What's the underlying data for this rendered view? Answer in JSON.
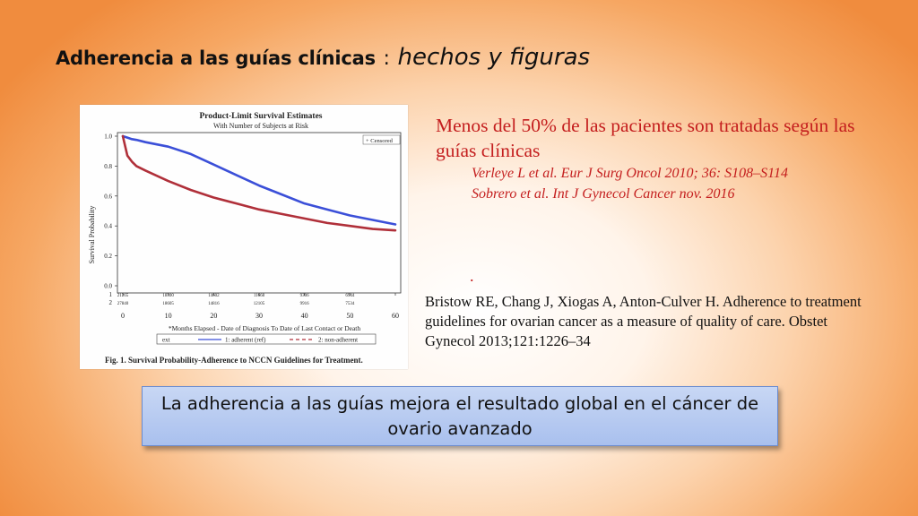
{
  "slide": {
    "title_bold": "Adherencia a las guías clínicas",
    "title_sep": ":",
    "title_italic": "hechos y figuras",
    "main_point": "Menos del 50% de las pacientes son tratadas según las guías clínicas",
    "refs": [
      "Verleye L et al. Eur J Surg Oncol 2010; 36: S108–S114",
      "Sobrero et al. Int J Gynecol Cancer nov. 2016"
    ],
    "stray_mark": ".",
    "citation": "Bristow RE, Chang J, Xiogas A, Anton-Culver H. Adherence to treatment guidelines for ovarian cancer as a measure of quality of care. Obstet Gynecol 2013;121:1226–34",
    "conclusion": "La adherencia a las guías mejora el resultado global en el cáncer de ovario avanzado"
  },
  "figure": {
    "title": "Product-Limit Survival Estimates",
    "subtitle": "With Number of Subjects at Risk",
    "legend_censored": "+ Censored",
    "xlabel": "*Months Elapsed - Date of Diagnosis To Date of Last Contact or Death",
    "ylabel": "Survival Probability",
    "key_label": "ext",
    "key_1": "1: adherent (ref)",
    "key_2": "2: non-adherent",
    "caption": "Fig. 1. Survival Probability-Adherence to NCCN Guidelines for Treatment.",
    "risk_row_labels": [
      "1",
      "2"
    ],
    "risk_row_1": [
      "21265",
      "18300",
      "14602",
      "11668",
      "9306",
      "6944"
    ],
    "risk_row_2": [
      "27840",
      "18605",
      "14816",
      "12105",
      "9916",
      "7534"
    ],
    "colors": {
      "adherent": "#3b4fd8",
      "non_adherent": "#b0303a"
    }
  },
  "chart_data": {
    "type": "line",
    "title": "Product-Limit Survival Estimates",
    "subtitle": "With Number of Subjects at Risk",
    "xlabel": "*Months Elapsed - Date of Diagnosis To Date of Last Contact or Death",
    "ylabel": "Survival Probability",
    "xlim": [
      0,
      60
    ],
    "ylim": [
      0.0,
      1.0
    ],
    "x_ticks": [
      "0",
      "10",
      "20",
      "30",
      "40",
      "50",
      "60"
    ],
    "y_ticks": [
      "0.0",
      "0.2",
      "0.4",
      "0.6",
      "0.8",
      "1.0"
    ],
    "x": [
      0,
      1,
      2,
      3,
      5,
      10,
      15,
      20,
      25,
      30,
      35,
      40,
      45,
      50,
      55,
      60
    ],
    "series": [
      {
        "name": "1: adherent (ref)",
        "values": [
          1.0,
          0.99,
          0.98,
          0.975,
          0.96,
          0.93,
          0.88,
          0.81,
          0.74,
          0.67,
          0.61,
          0.55,
          0.51,
          0.47,
          0.44,
          0.41
        ]
      },
      {
        "name": "2: non-adherent",
        "values": [
          1.0,
          0.87,
          0.83,
          0.8,
          0.77,
          0.7,
          0.64,
          0.59,
          0.55,
          0.51,
          0.48,
          0.45,
          0.42,
          0.4,
          0.38,
          0.37
        ]
      }
    ],
    "legend": "top-right",
    "grid": false
  }
}
